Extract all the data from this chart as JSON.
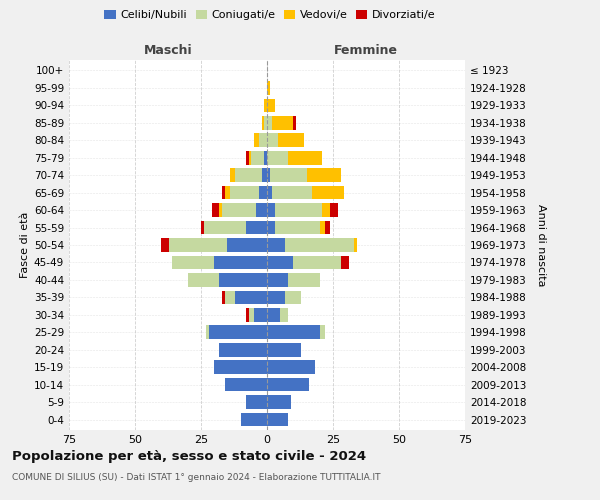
{
  "age_groups": [
    "0-4",
    "5-9",
    "10-14",
    "15-19",
    "20-24",
    "25-29",
    "30-34",
    "35-39",
    "40-44",
    "45-49",
    "50-54",
    "55-59",
    "60-64",
    "65-69",
    "70-74",
    "75-79",
    "80-84",
    "85-89",
    "90-94",
    "95-99",
    "100+"
  ],
  "birth_years": [
    "2019-2023",
    "2014-2018",
    "2009-2013",
    "2004-2008",
    "1999-2003",
    "1994-1998",
    "1989-1993",
    "1984-1988",
    "1979-1983",
    "1974-1978",
    "1969-1973",
    "1964-1968",
    "1959-1963",
    "1954-1958",
    "1949-1953",
    "1944-1948",
    "1939-1943",
    "1934-1938",
    "1929-1933",
    "1924-1928",
    "≤ 1923"
  ],
  "maschi": {
    "celibi": [
      10,
      8,
      16,
      20,
      18,
      22,
      5,
      12,
      18,
      20,
      15,
      8,
      4,
      3,
      2,
      1,
      0,
      0,
      0,
      0,
      0
    ],
    "coniugati": [
      0,
      0,
      0,
      0,
      0,
      1,
      2,
      4,
      12,
      16,
      22,
      16,
      13,
      11,
      10,
      5,
      3,
      1,
      0,
      0,
      0
    ],
    "vedovi": [
      0,
      0,
      0,
      0,
      0,
      0,
      0,
      0,
      0,
      0,
      0,
      0,
      1,
      2,
      2,
      1,
      2,
      1,
      1,
      0,
      0
    ],
    "divorziati": [
      0,
      0,
      0,
      0,
      0,
      0,
      1,
      1,
      0,
      0,
      3,
      1,
      3,
      1,
      0,
      1,
      0,
      0,
      0,
      0,
      0
    ]
  },
  "femmine": {
    "nubili": [
      8,
      9,
      16,
      18,
      13,
      20,
      5,
      7,
      8,
      10,
      7,
      3,
      3,
      2,
      1,
      0,
      0,
      0,
      0,
      0,
      0
    ],
    "coniugate": [
      0,
      0,
      0,
      0,
      0,
      2,
      3,
      6,
      12,
      18,
      26,
      17,
      18,
      15,
      14,
      8,
      4,
      2,
      0,
      0,
      0
    ],
    "vedove": [
      0,
      0,
      0,
      0,
      0,
      0,
      0,
      0,
      0,
      0,
      1,
      2,
      3,
      12,
      13,
      13,
      10,
      8,
      3,
      1,
      0
    ],
    "divorziate": [
      0,
      0,
      0,
      0,
      0,
      0,
      0,
      0,
      0,
      3,
      0,
      2,
      3,
      0,
      0,
      0,
      0,
      1,
      0,
      0,
      0
    ]
  },
  "colors": {
    "celibi_nubili": "#4472c4",
    "coniugati": "#c5d9a0",
    "vedovi": "#ffc000",
    "divorziati": "#cc0000"
  },
  "title": "Popolazione per età, sesso e stato civile - 2024",
  "subtitle": "COMUNE DI SILIUS (SU) - Dati ISTAT 1° gennaio 2024 - Elaborazione TUTTITALIA.IT",
  "xlabel_maschi": "Maschi",
  "xlabel_femmine": "Femmine",
  "ylabel_left": "Fasce di età",
  "ylabel_right": "Anni di nascita",
  "xlim": 75,
  "bg_color": "#f0f0f0",
  "plot_bg": "#ffffff"
}
